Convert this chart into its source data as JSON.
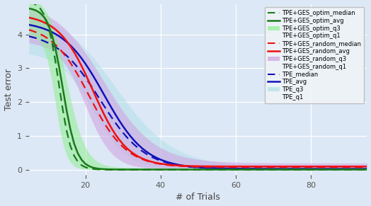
{
  "xlabel": "# of Trials",
  "ylabel": "Test error",
  "xlim": [
    5,
    95
  ],
  "ylim": [
    -0.15,
    4.9
  ],
  "yticks": [
    0,
    1,
    2,
    3,
    4
  ],
  "xticks": [
    20,
    40,
    60,
    80
  ],
  "bg_color": "#dce8f5",
  "green_color": "#1a7a1a",
  "red_color": "#ee1111",
  "blue_color": "#1111bb",
  "green_fill": "#90ee90",
  "pink_fill": "#d0a0e0",
  "blue_fill": "#aad4e8",
  "cyan_fill": "#b0e0e8"
}
